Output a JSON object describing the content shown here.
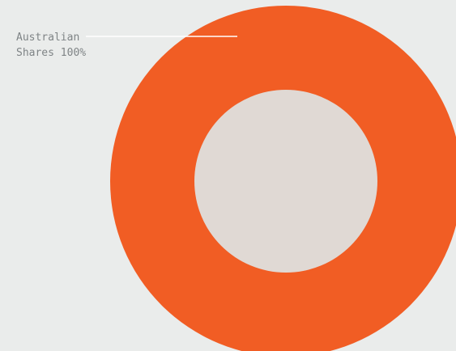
{
  "chart_data": {
    "type": "pie",
    "variant": "donut",
    "labels": [
      "Australian Shares"
    ],
    "values": [
      100
    ],
    "unit": "%",
    "slice_labels": [
      {
        "line1": "Australian",
        "line2": "Shares 100%"
      }
    ],
    "colors": {
      "slice": "#f15d24",
      "hole": "#e0d9d4",
      "leader_line": "#ffffff",
      "label_text": "#7f8486",
      "background": "#eaeceb"
    },
    "legend": "none"
  }
}
